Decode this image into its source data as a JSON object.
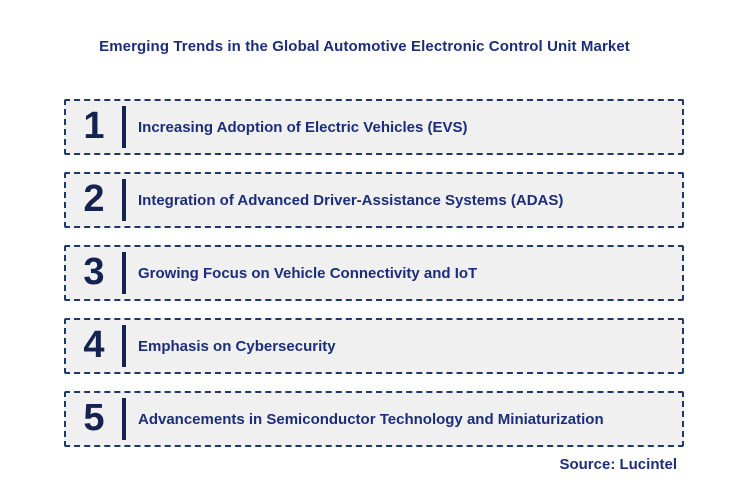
{
  "title": "Emerging Trends in the Global Automotive Electronic Control Unit Market",
  "source": "Source: Lucintel",
  "trends": [
    {
      "number": "1",
      "label": "Increasing Adoption of Electric Vehicles (EVS)"
    },
    {
      "number": "2",
      "label": "Integration of Advanced Driver-Assistance Systems (ADAS)"
    },
    {
      "number": "3",
      "label": "Growing Focus on Vehicle Connectivity and IoT"
    },
    {
      "number": "4",
      "label": "Emphasis on Cybersecurity"
    },
    {
      "number": "5",
      "label": "Advancements in Semiconductor Technology and Miniaturization"
    }
  ],
  "colors": {
    "title_text": "#1c2d7a",
    "number_and_bar": "#14234f",
    "row_fill": "#f0f0f0",
    "row_border": "#1f3864",
    "background": "#ffffff"
  }
}
